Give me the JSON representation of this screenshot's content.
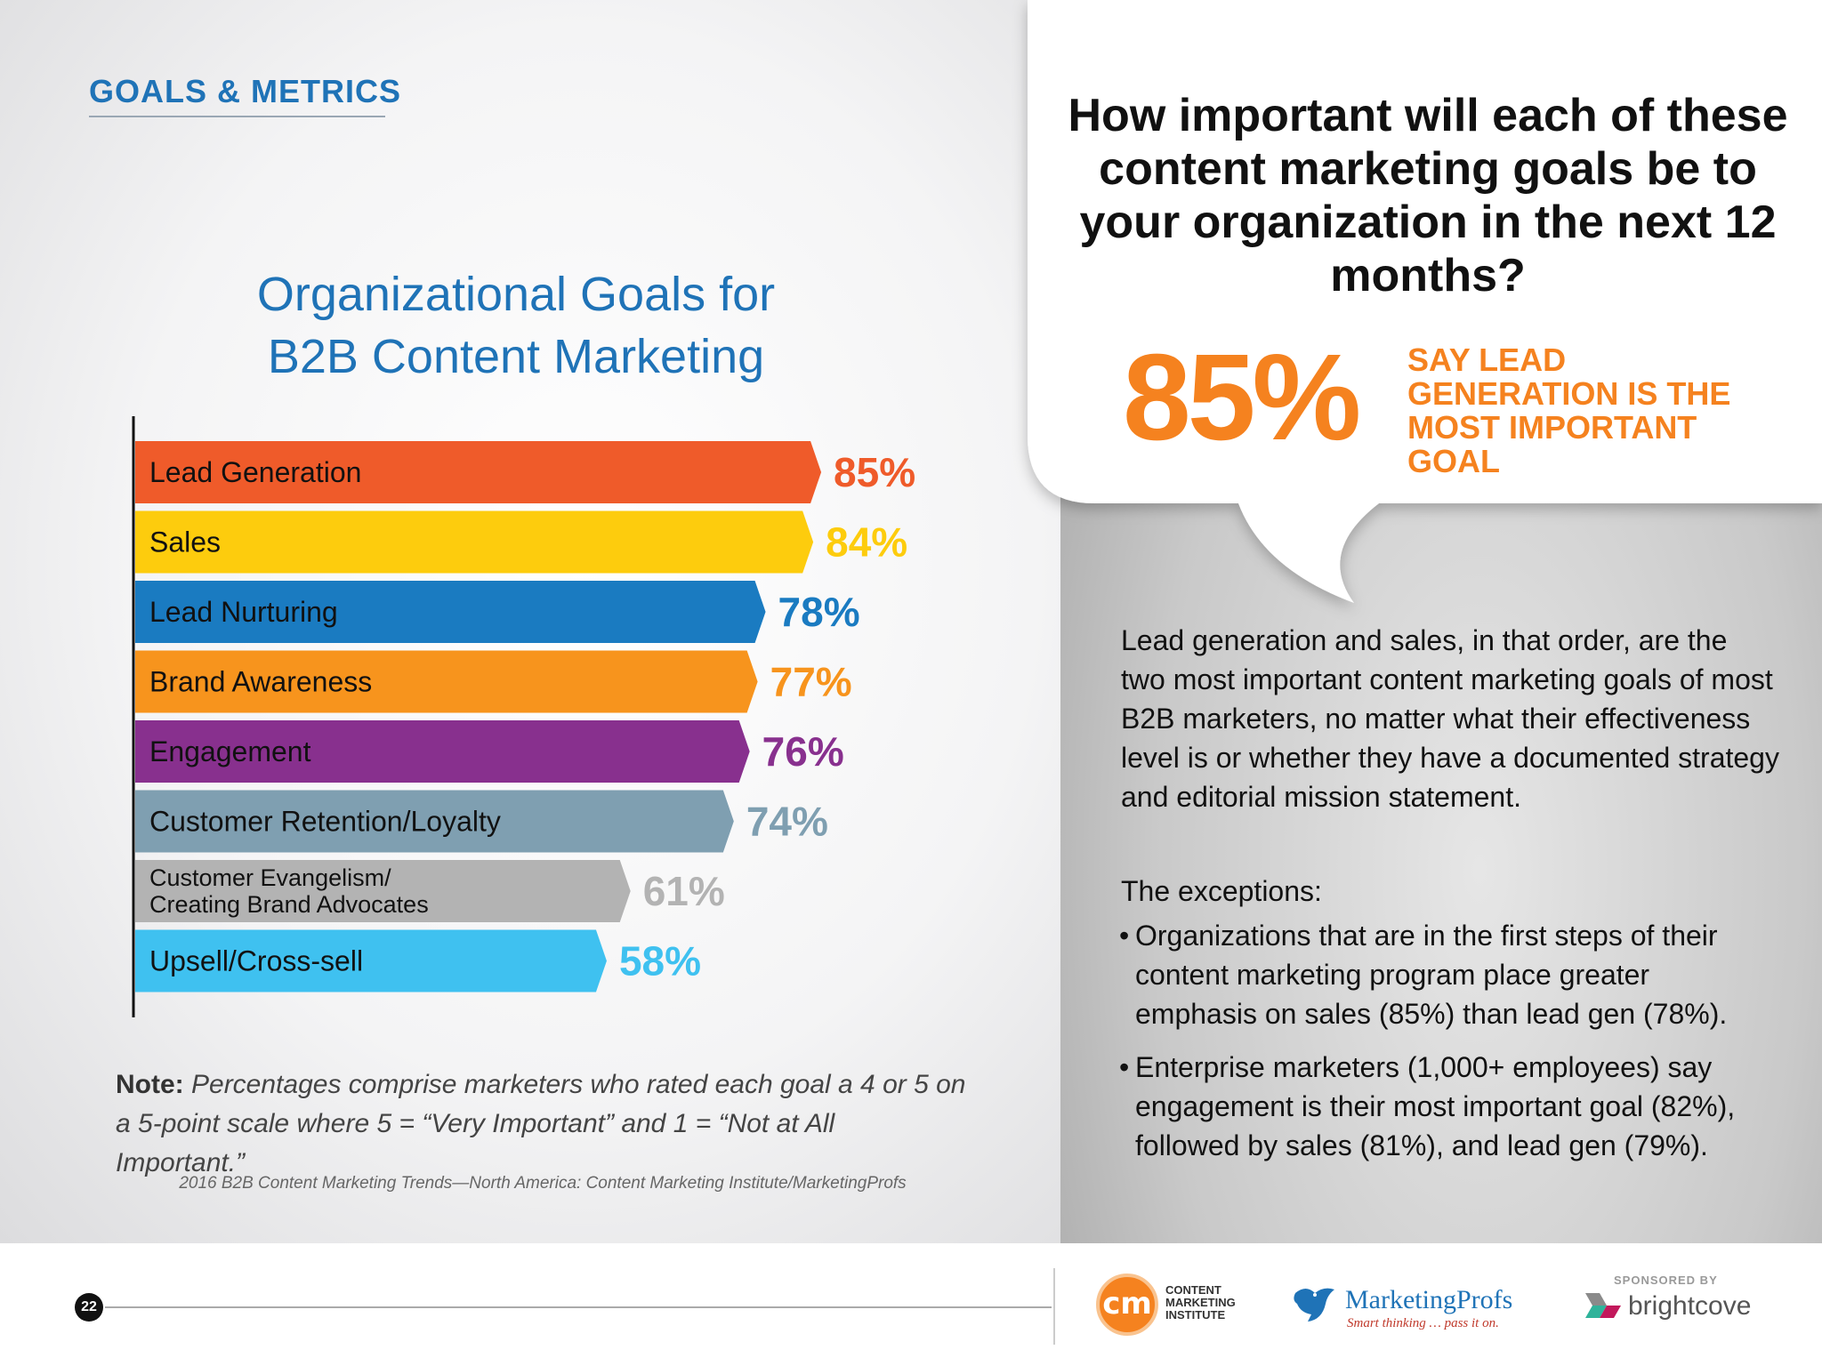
{
  "section_label": "GOALS & METRICS",
  "chart_title_line1": "Organizational Goals for",
  "chart_title_line2": "B2B Content Marketing",
  "chart_data": {
    "type": "bar",
    "orientation": "horizontal",
    "title": "Organizational Goals for B2B Content Marketing",
    "categories": [
      [
        "Lead Generation"
      ],
      [
        "Sales"
      ],
      [
        "Lead Nurturing"
      ],
      [
        "Brand Awareness"
      ],
      [
        "Engagement"
      ],
      [
        "Customer Retention/Loyalty"
      ],
      [
        "Customer Evangelism/",
        "Creating Brand Advocates"
      ],
      [
        "Upsell/Cross-sell"
      ]
    ],
    "values": [
      85,
      84,
      78,
      77,
      76,
      74,
      61,
      58
    ],
    "value_labels": [
      "85%",
      "84%",
      "78%",
      "77%",
      "76%",
      "74%",
      "61%",
      "58%"
    ],
    "colors": [
      "#ef5b2a",
      "#fdcc0d",
      "#1a7bc1",
      "#f7941d",
      "#88308e",
      "#7f9fb1",
      "#b3b3b3",
      "#3fc1f0"
    ],
    "label_colors": [
      "#ef5b2a",
      "#fdcc0d",
      "#1a7bc1",
      "#f7941d",
      "#88308e",
      "#7f9fb1",
      "#b3b3b3",
      "#3fc1f0"
    ],
    "text_colors": [
      "#111111",
      "#111111",
      "#111111",
      "#111111",
      "#111111",
      "#111111",
      "#111111",
      "#111111"
    ],
    "xlim": [
      0,
      100
    ],
    "grid": false
  },
  "note_label": "Note:",
  "note_text": "Percentages comprise marketers who rated each goal a 4 or 5 on a 5-point scale where 5 = “Very Important” and 1 = “Not at All Important.”",
  "source": "2016 B2B Content Marketing Trends—North America: Content Marketing Institute/MarketingProfs",
  "question": "How important will each of these content marketing goals be to your organization in the next 12 months?",
  "big_stat": "85%",
  "stat_caption": "SAY LEAD GENERATION IS THE MOST IMPORTANT GOAL",
  "body_text": "Lead generation and sales, in that order, are the two most important content marketing goals of most B2B marketers, no matter what their effectiveness level is or whether they have a documented strategy and editorial mission statement.",
  "exceptions_heading": "The exceptions:",
  "bullets": [
    "Organizations that are in the first steps of their content marketing program place greater emphasis on sales (85%) than lead gen (78%).",
    "Enterprise marketers (1,000+ employees) say engagement is their most important goal (82%), followed by sales (81%), and lead gen (79%)."
  ],
  "page_number": "22",
  "cmi_logo_mark": "cm",
  "cmi_text": [
    "CONTENT",
    "MARKETING",
    "INSTITUTE"
  ],
  "mp_name": "MarketingProfs",
  "mp_tagline": "Smart thinking … pass it on.",
  "sponsored_label": "SPONSORED BY",
  "brightcove_name": "brightcove",
  "colors": {
    "accent_blue": "#1f73b7",
    "accent_orange": "#f5821f"
  }
}
